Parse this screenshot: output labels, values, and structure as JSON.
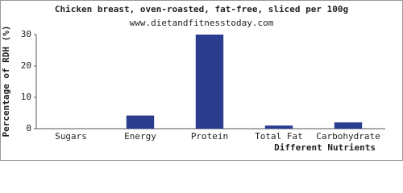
{
  "chart_data": {
    "type": "bar",
    "title": "Chicken breast, oven-roasted, fat-free, sliced per 100g",
    "subtitle": "www.dietandfitnesstoday.com",
    "y_label": "Percentage of RDH (%)",
    "x_label": "Different Nutrients",
    "categories": [
      "Sugars",
      "Energy",
      "Protein",
      "Total Fat",
      "Carbohydrate"
    ],
    "values": [
      0,
      4.2,
      30,
      1,
      2
    ],
    "color": "#2b3d8f",
    "ylim": [
      0,
      30
    ],
    "yticks": [
      0,
      10,
      20,
      30
    ],
    "grid": false
  }
}
